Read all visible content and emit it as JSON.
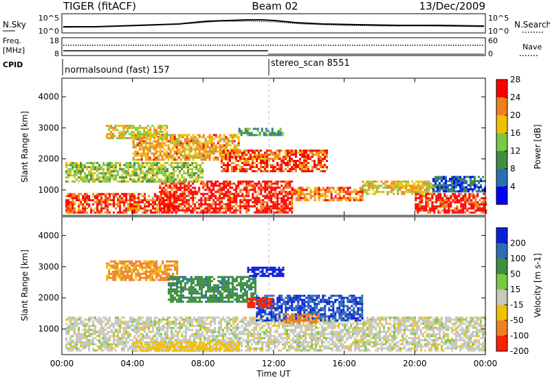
{
  "header": {
    "radar": "TIGER (fitACF)",
    "beam": "Beam 02",
    "date": "13/Dec/2009"
  },
  "nsky_panel": {
    "left_label": "N.Sky",
    "left_ticks": [
      "10^5",
      "10^0"
    ],
    "right_ticks": [
      "10^5",
      "10^0"
    ],
    "right_label": "N.Search"
  },
  "freq_panel": {
    "left_label_1": "Freq.",
    "left_label_2": "[MHz]",
    "left_ticks": [
      "18",
      "8"
    ],
    "right_ticks": [
      "60",
      "0"
    ],
    "right_label": "Nave"
  },
  "cpid_panel": {
    "label": "CPID",
    "segments": [
      {
        "name": "normalsound (fast) 157",
        "start_hour": 0,
        "end_hour": 12
      },
      {
        "name": "stereo_scan 8551",
        "start_hour": 12,
        "end_hour": 24
      }
    ]
  },
  "x_axis": {
    "label": "Time UT",
    "ticks": [
      "00:00",
      "04:00",
      "08:00",
      "12:00",
      "16:00",
      "20:00",
      "00:00"
    ]
  },
  "power_panel": {
    "ylabel": "Slant Range [km]",
    "yticks": [
      "1000",
      "2000",
      "3000",
      "4000"
    ],
    "colorbar_label": "Power [dB]",
    "colorbar_ticks": [
      "4",
      "8",
      "12",
      "16",
      "20",
      "24",
      "28"
    ],
    "colors": [
      "#0000ff",
      "#2a6fb0",
      "#3f8f3f",
      "#7ac943",
      "#f0c000",
      "#f08020",
      "#ff0000"
    ]
  },
  "velocity_panel": {
    "ylabel": "Slant Range [km]",
    "yticks": [
      "1000",
      "2000",
      "3000",
      "4000"
    ],
    "colorbar_label": "Velocity [m s-1]",
    "colorbar_ticks": [
      "200",
      "100",
      "50",
      "15",
      "-15",
      "-50",
      "-100",
      "-200"
    ],
    "colors": [
      "#0a1fd8",
      "#2a6fb0",
      "#3f8f3f",
      "#7ac943",
      "#c8c8c0",
      "#f0c000",
      "#f08020",
      "#ff2000"
    ]
  },
  "chart_data": {
    "type": "heatmap",
    "x_range_hours": [
      0,
      24
    ],
    "y_range_km": [
      180,
      4600
    ],
    "power_regions": [
      {
        "t0": 0.2,
        "t1": 6.5,
        "r0": 250,
        "r1": 900,
        "value": 26
      },
      {
        "t0": 5.5,
        "t1": 13.0,
        "r0": 250,
        "r1": 1300,
        "value": 28
      },
      {
        "t0": 13.0,
        "t1": 17.0,
        "r0": 700,
        "r1": 1100,
        "value": 24
      },
      {
        "t0": 17.0,
        "t1": 21.0,
        "r0": 900,
        "r1": 1300,
        "value": 20
      },
      {
        "t0": 20.0,
        "t1": 24.0,
        "r0": 250,
        "r1": 900,
        "value": 28
      },
      {
        "t0": 21.0,
        "t1": 24.0,
        "r0": 950,
        "r1": 1450,
        "value": 8
      },
      {
        "t0": 0.2,
        "t1": 8.0,
        "r0": 1300,
        "r1": 1900,
        "value": 16
      },
      {
        "t0": 4.0,
        "t1": 10.0,
        "r0": 2000,
        "r1": 2800,
        "value": 22
      },
      {
        "t0": 9.0,
        "t1": 15.0,
        "r0": 1600,
        "r1": 2300,
        "value": 26
      },
      {
        "t0": 2.5,
        "t1": 6.0,
        "r0": 2700,
        "r1": 3100,
        "value": 20
      },
      {
        "t0": 10.0,
        "t1": 12.5,
        "r0": 2800,
        "r1": 3000,
        "value": 12
      }
    ],
    "velocity_regions": [
      {
        "t0": 0.2,
        "t1": 24.0,
        "r0": 300,
        "r1": 1400,
        "value": 0
      },
      {
        "t0": 2.5,
        "t1": 6.5,
        "r0": 2600,
        "r1": 3200,
        "value": -60
      },
      {
        "t0": 6.0,
        "t1": 11.0,
        "r0": 1900,
        "r1": 2700,
        "value": 60
      },
      {
        "t0": 11.0,
        "t1": 17.0,
        "r0": 1300,
        "r1": 2100,
        "value": 150
      },
      {
        "t0": 10.5,
        "t1": 12.0,
        "r0": 1700,
        "r1": 2000,
        "value": -180
      },
      {
        "t0": 10.5,
        "t1": 12.5,
        "r0": 2700,
        "r1": 3000,
        "value": 200
      },
      {
        "t0": 12.5,
        "t1": 14.5,
        "r0": 1200,
        "r1": 1500,
        "value": -80
      },
      {
        "t0": 4.0,
        "t1": 10.0,
        "r0": 300,
        "r1": 600,
        "value": -30
      }
    ]
  }
}
